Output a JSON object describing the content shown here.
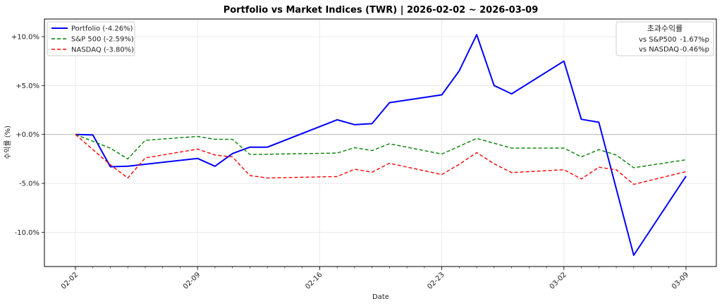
{
  "chart_data": {
    "type": "line",
    "title": "Portfolio vs Market Indices (TWR) | 2026-02-02 ~ 2026-03-09",
    "xlabel": "Date",
    "ylabel": "수익률 (%)",
    "x_range": [
      "2026-02-02",
      "2026-03-09"
    ],
    "ylim": [
      -13.5,
      11.8
    ],
    "grid": true,
    "x_ticks": [
      {
        "date": "2026-02-02",
        "label": "02-02"
      },
      {
        "date": "2026-02-09",
        "label": "02-09"
      },
      {
        "date": "2026-02-16",
        "label": "02-16"
      },
      {
        "date": "2026-02-23",
        "label": "02-23"
      },
      {
        "date": "2026-03-02",
        "label": "03-02"
      },
      {
        "date": "2026-03-09",
        "label": "03-09"
      }
    ],
    "y_ticks": [
      {
        "value": 10,
        "label": "+10.0%"
      },
      {
        "value": 5,
        "label": "+5.0%"
      },
      {
        "value": 0,
        "label": "+0.0%"
      },
      {
        "value": -5,
        "label": "-5.0%"
      },
      {
        "value": -10,
        "label": "-10.0%"
      }
    ],
    "legend_position": "top-left",
    "series": [
      {
        "name": "Portfolio (-4.26%)",
        "color": "#0000ff",
        "style": "solid",
        "points": [
          [
            "2026-02-02",
            0.0
          ],
          [
            "2026-02-03",
            -0.05
          ],
          [
            "2026-02-04",
            -3.3
          ],
          [
            "2026-02-05",
            -3.25
          ],
          [
            "2026-02-09",
            -2.45
          ],
          [
            "2026-02-10",
            -3.25
          ],
          [
            "2026-02-11",
            -1.95
          ],
          [
            "2026-02-12",
            -1.3
          ],
          [
            "2026-02-13",
            -1.3
          ],
          [
            "2026-02-17",
            1.5
          ],
          [
            "2026-02-18",
            1.0
          ],
          [
            "2026-02-19",
            1.1
          ],
          [
            "2026-02-20",
            3.25
          ],
          [
            "2026-02-23",
            4.05
          ],
          [
            "2026-02-24",
            6.5
          ],
          [
            "2026-02-25",
            10.2
          ],
          [
            "2026-02-26",
            5.0
          ],
          [
            "2026-02-27",
            4.15
          ],
          [
            "2026-03-02",
            7.5
          ],
          [
            "2026-03-03",
            1.55
          ],
          [
            "2026-03-04",
            1.25
          ],
          [
            "2026-03-06",
            -12.35
          ],
          [
            "2026-03-09",
            -4.26
          ]
        ]
      },
      {
        "name": "S&P 500 (-2.59%)",
        "color": "#008000",
        "style": "dashed",
        "points": [
          [
            "2026-02-02",
            0.0
          ],
          [
            "2026-02-04",
            -1.4
          ],
          [
            "2026-02-05",
            -2.5
          ],
          [
            "2026-02-06",
            -0.6
          ],
          [
            "2026-02-09",
            -0.2
          ],
          [
            "2026-02-10",
            -0.5
          ],
          [
            "2026-02-11",
            -0.5
          ],
          [
            "2026-02-12",
            -2.05
          ],
          [
            "2026-02-17",
            -1.9
          ],
          [
            "2026-02-18",
            -1.35
          ],
          [
            "2026-02-19",
            -1.65
          ],
          [
            "2026-02-20",
            -0.95
          ],
          [
            "2026-02-23",
            -2.0
          ],
          [
            "2026-02-25",
            -0.4
          ],
          [
            "2026-02-27",
            -1.4
          ],
          [
            "2026-03-02",
            -1.4
          ],
          [
            "2026-03-03",
            -2.3
          ],
          [
            "2026-03-04",
            -1.55
          ],
          [
            "2026-03-05",
            -2.1
          ],
          [
            "2026-03-06",
            -3.4
          ],
          [
            "2026-03-09",
            -2.59
          ]
        ]
      },
      {
        "name": "NASDAQ (-3.80%)",
        "color": "#ff0000",
        "style": "dashed",
        "points": [
          [
            "2026-02-02",
            0.0
          ],
          [
            "2026-02-04",
            -3.1
          ],
          [
            "2026-02-05",
            -4.45
          ],
          [
            "2026-02-06",
            -2.4
          ],
          [
            "2026-02-09",
            -1.5
          ],
          [
            "2026-02-10",
            -2.1
          ],
          [
            "2026-02-11",
            -2.3
          ],
          [
            "2026-02-12",
            -4.2
          ],
          [
            "2026-02-13",
            -4.45
          ],
          [
            "2026-02-17",
            -4.3
          ],
          [
            "2026-02-18",
            -3.55
          ],
          [
            "2026-02-19",
            -3.85
          ],
          [
            "2026-02-20",
            -2.95
          ],
          [
            "2026-02-23",
            -4.1
          ],
          [
            "2026-02-24",
            -3.05
          ],
          [
            "2026-02-25",
            -1.85
          ],
          [
            "2026-02-26",
            -3.0
          ],
          [
            "2026-02-27",
            -3.9
          ],
          [
            "2026-03-02",
            -3.6
          ],
          [
            "2026-03-03",
            -4.55
          ],
          [
            "2026-03-04",
            -3.35
          ],
          [
            "2026-03-05",
            -3.6
          ],
          [
            "2026-03-06",
            -5.1
          ],
          [
            "2026-03-09",
            -3.8
          ]
        ]
      }
    ],
    "excess_box": {
      "title": "초과수익률",
      "rows": [
        {
          "label": "vs S&P500",
          "value": "-1.67%p"
        },
        {
          "label": "vs NASDAQ",
          "value": "-0.46%p"
        }
      ]
    }
  }
}
